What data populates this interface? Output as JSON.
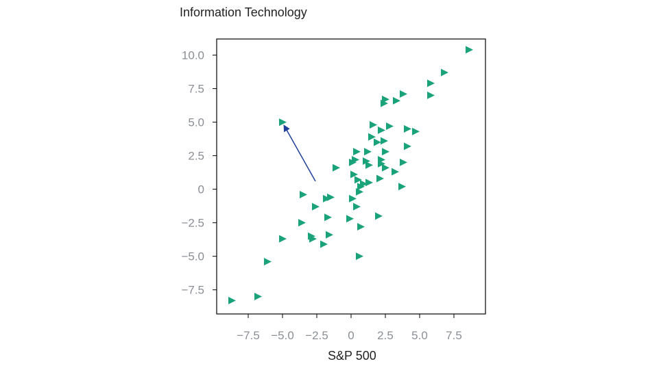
{
  "chart_data": {
    "type": "scatter",
    "title": "",
    "xlabel": "S&P 500",
    "ylabel": "Information Technology",
    "xlim": [
      -9.8,
      9.8
    ],
    "ylim": [
      -9.3,
      11.2
    ],
    "x_ticks": [
      -7.5,
      -5.0,
      -2.5,
      0,
      2.5,
      5.0,
      7.5
    ],
    "x_tick_labels": [
      "−7.5",
      "−5.0",
      "−2.5",
      "0",
      "2.5",
      "5.0",
      "7.5"
    ],
    "y_ticks": [
      10.0,
      7.5,
      5.0,
      2.5,
      0,
      -2.5,
      -5.0,
      -7.5
    ],
    "y_tick_labels": [
      "10.0",
      "7.5",
      "5.0",
      "2.5",
      "0",
      "−2.5",
      "−5.0",
      "−7.5"
    ],
    "marker": "triangle-right",
    "marker_color": "#1aa37a",
    "arrow_color": "#1f3f99",
    "arrow": {
      "from": [
        -2.6,
        0.6
      ],
      "to": [
        -4.8,
        4.6
      ]
    },
    "points": [
      [
        8.6,
        10.4
      ],
      [
        6.8,
        8.7
      ],
      [
        5.8,
        7.9
      ],
      [
        5.8,
        7.0
      ],
      [
        3.8,
        7.1
      ],
      [
        2.5,
        6.7
      ],
      [
        2.4,
        6.4
      ],
      [
        3.3,
        6.6
      ],
      [
        -5.0,
        5.0
      ],
      [
        1.6,
        4.8
      ],
      [
        2.8,
        4.7
      ],
      [
        4.1,
        4.5
      ],
      [
        4.7,
        4.3
      ],
      [
        2.2,
        4.4
      ],
      [
        1.5,
        3.9
      ],
      [
        1.9,
        3.5
      ],
      [
        2.4,
        3.6
      ],
      [
        4.1,
        3.2
      ],
      [
        0.4,
        2.8
      ],
      [
        1.2,
        2.8
      ],
      [
        2.5,
        2.8
      ],
      [
        0.3,
        2.2
      ],
      [
        0.1,
        2.0
      ],
      [
        1.1,
        2.1
      ],
      [
        1.3,
        1.8
      ],
      [
        2.2,
        2.2
      ],
      [
        2.2,
        1.9
      ],
      [
        2.5,
        1.6
      ],
      [
        3.8,
        2.0
      ],
      [
        -1.1,
        1.6
      ],
      [
        0.2,
        1.1
      ],
      [
        0.5,
        0.7
      ],
      [
        0.9,
        0.4
      ],
      [
        1.3,
        0.5
      ],
      [
        2.1,
        0.8
      ],
      [
        3.2,
        1.3
      ],
      [
        0.7,
        0.2
      ],
      [
        3.7,
        0.2
      ],
      [
        0.6,
        -0.2
      ],
      [
        -3.5,
        -0.4
      ],
      [
        -1.5,
        -0.6
      ],
      [
        -1.8,
        -0.7
      ],
      [
        0.1,
        -0.7
      ],
      [
        -2.6,
        -1.3
      ],
      [
        0.4,
        -1.3
      ],
      [
        -1.7,
        -2.1
      ],
      [
        -0.1,
        -2.2
      ],
      [
        2.0,
        -2.0
      ],
      [
        -3.6,
        -2.5
      ],
      [
        0.7,
        -2.8
      ],
      [
        -2.9,
        -3.5
      ],
      [
        -2.8,
        -3.7
      ],
      [
        -1.6,
        -3.4
      ],
      [
        -2.0,
        -4.1
      ],
      [
        -5.0,
        -3.7
      ],
      [
        0.6,
        -5.0
      ],
      [
        -6.1,
        -5.4
      ],
      [
        -6.8,
        -8.0
      ],
      [
        -8.7,
        -8.3
      ]
    ]
  }
}
